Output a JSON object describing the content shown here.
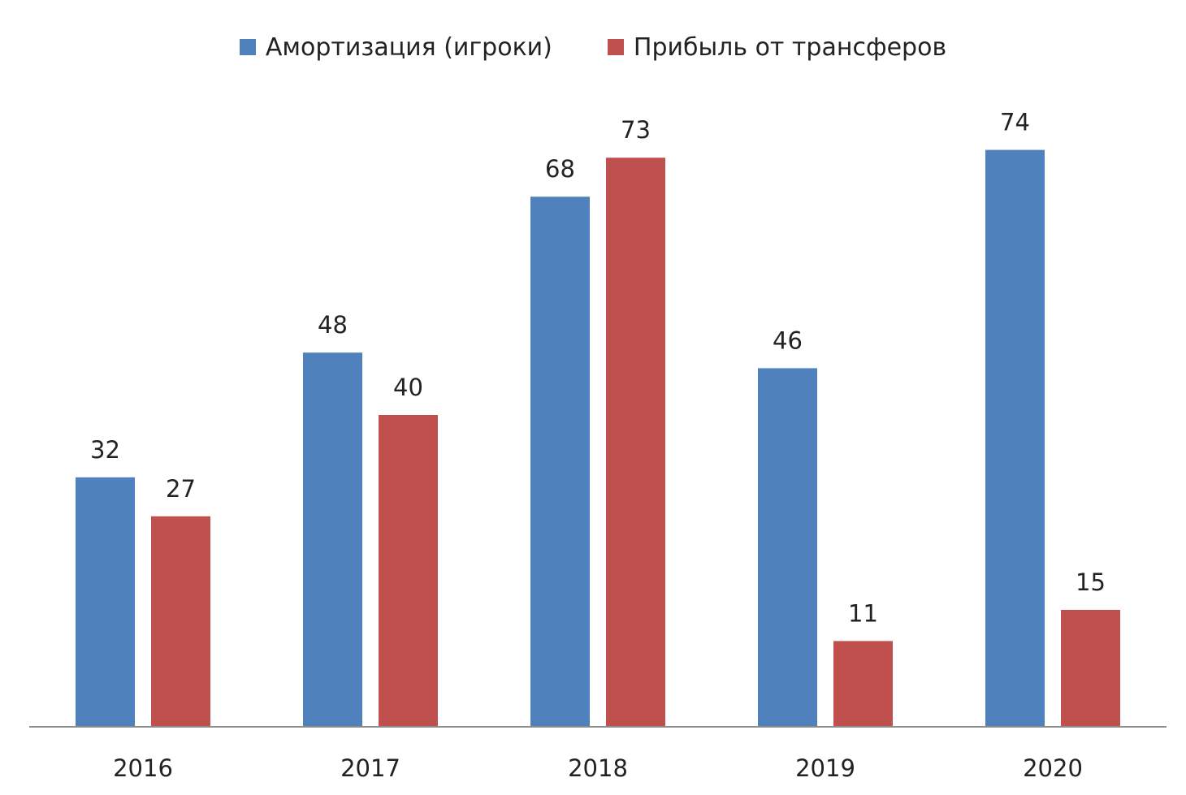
{
  "chart_data": {
    "type": "bar",
    "title": "",
    "xlabel": "",
    "ylabel": "",
    "categories": [
      "2016",
      "2017",
      "2018",
      "2019",
      "2020"
    ],
    "series": [
      {
        "name": "Амортизация (игроки)",
        "color": "#4F81BD",
        "values": [
          32,
          48,
          68,
          46,
          74
        ]
      },
      {
        "name": "Прибыль от трансферов",
        "color": "#C0504D",
        "values": [
          27,
          40,
          73,
          11,
          15
        ]
      }
    ],
    "ylim": [
      0,
      80
    ],
    "grid": false,
    "legend_position": "top",
    "data_labels": true,
    "axis_color": "#8C8C8C"
  }
}
